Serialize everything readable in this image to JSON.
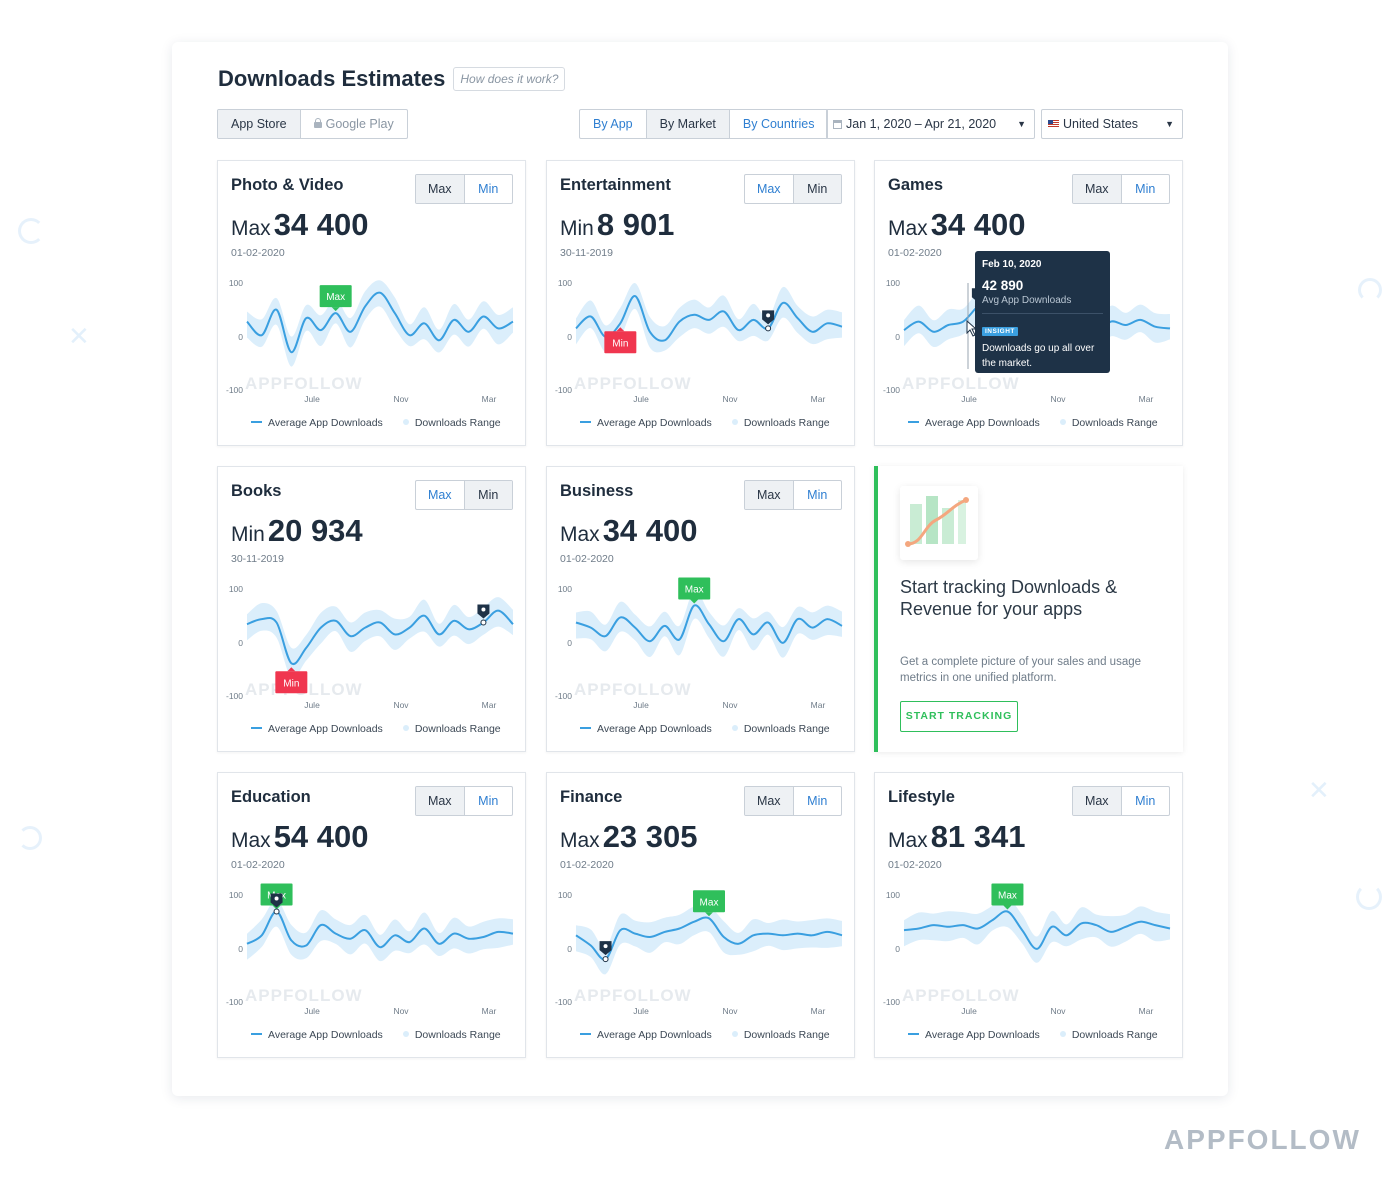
{
  "header": {
    "title": "Downloads Estimates",
    "help_link": "How does it work?"
  },
  "store_toggle": {
    "app_store": "App Store",
    "google_play": "Google Play",
    "active": "App Store"
  },
  "view_toggle": {
    "by_app": "By App",
    "by_market": "By Market",
    "by_countries": "By Countries",
    "active": "By Market"
  },
  "date_range": {
    "value": "Jan 1, 2020 – Apr 21, 2020",
    "icon": "calendar-icon"
  },
  "country": {
    "value": "United States",
    "icon": "us-flag-icon"
  },
  "labels": {
    "max": "Max",
    "min": "Min",
    "watermark": "APPFOLLOW",
    "legend_avg": "Average App Downloads",
    "legend_range": "Downloads Range"
  },
  "axis": {
    "y_ticks": [
      "100",
      "0",
      "-100"
    ],
    "x_ticks": [
      "Jule",
      "Nov",
      "Mar"
    ]
  },
  "colors": {
    "accent": "#2f7fd1",
    "line": "#3a9fe0",
    "band": "#dbeefb",
    "max_marker": "#2fbf5b",
    "min_marker": "#f0364f",
    "insight_marker": "#1e3247"
  },
  "cards": [
    {
      "name": "Photo & Video",
      "toggle": "Max",
      "kind": "Max",
      "value": "34 400",
      "date": "01-02-2020"
    },
    {
      "name": "Entertainment",
      "toggle": "Min",
      "kind": "Min",
      "value": "8 901",
      "date": "30-11-2019"
    },
    {
      "name": "Games",
      "toggle": "Max",
      "kind": "Max",
      "value": "34 400",
      "date": "01-02-2020"
    },
    {
      "name": "Books",
      "toggle": "Min",
      "kind": "Min",
      "value": "20 934",
      "date": "30-11-2019"
    },
    {
      "name": "Business",
      "toggle": "Max",
      "kind": "Max",
      "value": "34 400",
      "date": "01-02-2020"
    },
    {
      "name": "Education",
      "toggle": "Max",
      "kind": "Max",
      "value": "54 400",
      "date": "01-02-2020"
    },
    {
      "name": "Finance",
      "toggle": "Max",
      "kind": "Max",
      "value": "23 305",
      "date": "01-02-2020"
    },
    {
      "name": "Lifestyle",
      "toggle": "Max",
      "kind": "Max",
      "value": "81 341",
      "date": "01-02-2020"
    }
  ],
  "tooltip": {
    "date": "Feb 10, 2020",
    "value": "42 890",
    "label": "Avg App Downloads",
    "badge": "INSIGHT",
    "text": "Downloads go up all over the market."
  },
  "promo": {
    "title": "Start tracking Downloads & Revenue for your apps",
    "description": "Get a complete picture of your sales and usage metrics in one unified platform.",
    "button": "START TRACKING"
  },
  "brand": "APPFOLLOW"
}
